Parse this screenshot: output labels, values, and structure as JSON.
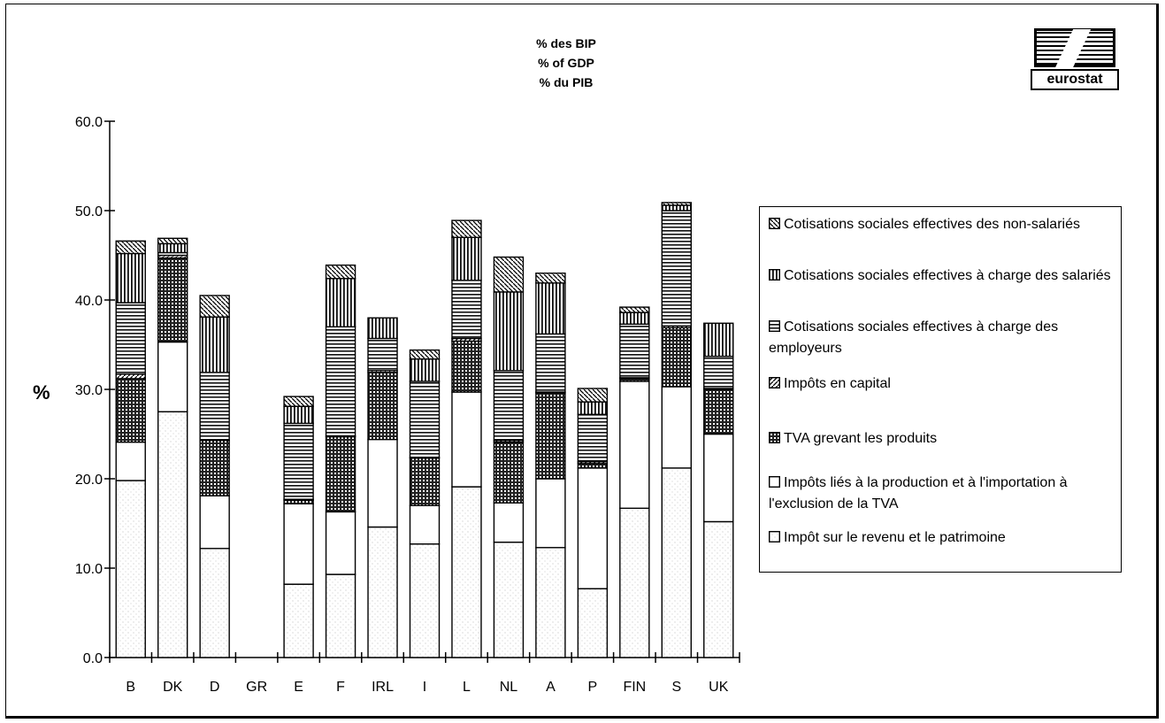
{
  "chart_data": {
    "type": "bar",
    "stacked": true,
    "title_lines": [
      "% des BIP",
      "% of GDP",
      "% du PIB"
    ],
    "ylabel": "%",
    "xlabel": "",
    "ylim": [
      0,
      60
    ],
    "yticks": [
      "0.0",
      "10.0",
      "20.0",
      "30.0",
      "40.0",
      "50.0",
      "60.0"
    ],
    "grid": false,
    "legend_position": "right",
    "categories": [
      "B",
      "DK",
      "D",
      "GR",
      "E",
      "F",
      "IRL",
      "I",
      "L",
      "NL",
      "A",
      "P",
      "FIN",
      "S",
      "UK"
    ],
    "series": [
      {
        "name": "Impôt sur le revenu et le patrimoine",
        "pattern": "stipple",
        "values": [
          19.8,
          27.5,
          12.2,
          0,
          8.2,
          9.3,
          14.6,
          12.7,
          19.1,
          12.9,
          12.3,
          7.7,
          16.7,
          21.2,
          15.2
        ]
      },
      {
        "name": "Impôts liés à la production et à l'importation à l'exclusion de la TVA",
        "pattern": "white",
        "values": [
          4.3,
          7.8,
          5.9,
          0,
          9.0,
          7.0,
          9.8,
          4.3,
          10.6,
          4.4,
          7.7,
          13.5,
          14.2,
          9.1,
          9.8
        ]
      },
      {
        "name": "TVA grevant les produits",
        "pattern": "grid",
        "values": [
          7.1,
          9.4,
          6.2,
          0,
          0.4,
          8.4,
          7.5,
          5.3,
          5.7,
          6.8,
          9.6,
          0.5,
          0.3,
          6.6,
          5.0
        ]
      },
      {
        "name": "Impôts en capital",
        "pattern": "diag",
        "values": [
          0.5,
          0.3,
          0,
          0,
          0.1,
          0.1,
          0.2,
          0.1,
          0.3,
          0.2,
          0.1,
          0.2,
          0.1,
          0.2,
          0.1
        ]
      },
      {
        "name": "Cotisations sociales effectives à charge des employeurs",
        "pattern": "hlines",
        "values": [
          8.0,
          0.3,
          7.6,
          0,
          8.5,
          12.2,
          3.6,
          8.5,
          6.5,
          7.8,
          6.5,
          5.3,
          6.0,
          12.9,
          3.6
        ]
      },
      {
        "name": "Cotisations sociales effectives à charge des salariés",
        "pattern": "vlines",
        "values": [
          5.5,
          1.0,
          6.2,
          0,
          1.9,
          5.4,
          2.3,
          2.5,
          4.8,
          8.8,
          5.7,
          1.4,
          1.3,
          0.6,
          3.7
        ]
      },
      {
        "name": "Cotisations sociales effectives des non-salariés",
        "pattern": "bdiag",
        "values": [
          1.4,
          0.6,
          2.4,
          0,
          1.1,
          1.5,
          0,
          1.0,
          1.9,
          3.9,
          1.1,
          1.5,
          0.6,
          0.3,
          0
        ]
      }
    ]
  },
  "logo_text": "eurostat"
}
